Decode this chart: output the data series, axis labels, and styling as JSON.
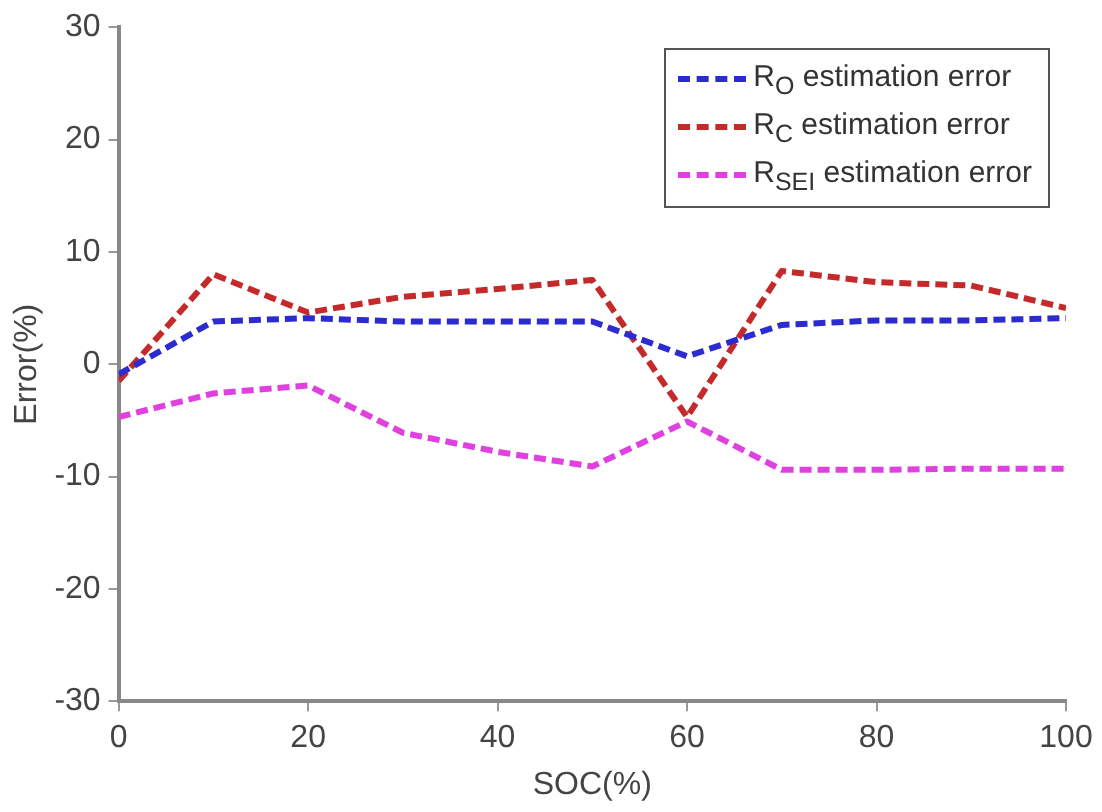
{
  "chart_data": {
    "type": "line",
    "xlabel": "SOC(%)",
    "ylabel": "Error(%)",
    "x": [
      0,
      10,
      20,
      30,
      40,
      50,
      60,
      70,
      80,
      90,
      100
    ],
    "series": [
      {
        "name": "R$_{O}$  estimation error",
        "color": "#2b2bd0",
        "values": [
          -0.9,
          3.8,
          4.1,
          3.8,
          3.8,
          3.8,
          0.7,
          3.5,
          3.9,
          3.9,
          4.1
        ]
      },
      {
        "name": "R$_{C}$  estimation error",
        "color": "#c42a2a",
        "values": [
          -1.5,
          8.0,
          4.6,
          6.0,
          6.7,
          7.5,
          -4.7,
          8.3,
          7.3,
          7.0,
          5.0
        ]
      },
      {
        "name": "R$_{SEI}$  estimation error",
        "color": "#e040e0",
        "values": [
          -4.7,
          -2.6,
          -1.9,
          -6.1,
          -7.8,
          -9.1,
          -5.1,
          -9.4,
          -9.4,
          -9.3,
          -9.3
        ]
      }
    ],
    "xlim": [
      0,
      100
    ],
    "xticks": [
      0,
      20,
      40,
      60,
      80,
      100
    ],
    "ylim": [
      -30,
      30
    ],
    "yticks": [
      -30,
      -20,
      -10,
      0,
      10,
      20,
      30
    ],
    "grid": false,
    "legend": "top right",
    "marker": "none",
    "line_style": "dashed"
  }
}
